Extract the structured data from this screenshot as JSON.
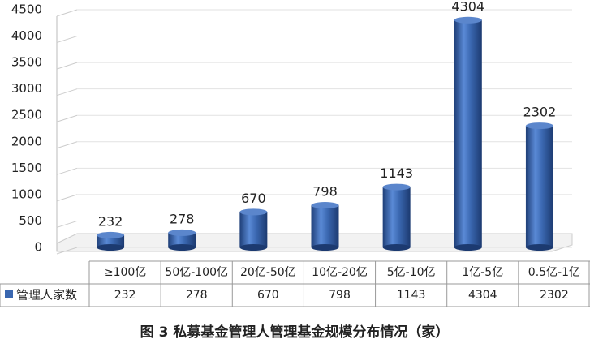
{
  "chart_data": {
    "type": "bar",
    "title": "图 3  私募基金管理人管理基金规模分布情况（家）",
    "categories": [
      "≥100亿",
      "50亿-100亿",
      "20亿-50亿",
      "10亿-20亿",
      "5亿-10亿",
      "1亿-5亿",
      "0.5亿-1亿"
    ],
    "series": [
      {
        "name": "管理人家数",
        "color": "#3a67b0",
        "values": [
          232,
          278,
          670,
          798,
          1143,
          4304,
          2302
        ]
      }
    ],
    "ylim": [
      0,
      4500
    ],
    "yticks": [
      0,
      500,
      1000,
      1500,
      2000,
      2500,
      3000,
      3500,
      4000,
      4500
    ],
    "grid": true
  }
}
